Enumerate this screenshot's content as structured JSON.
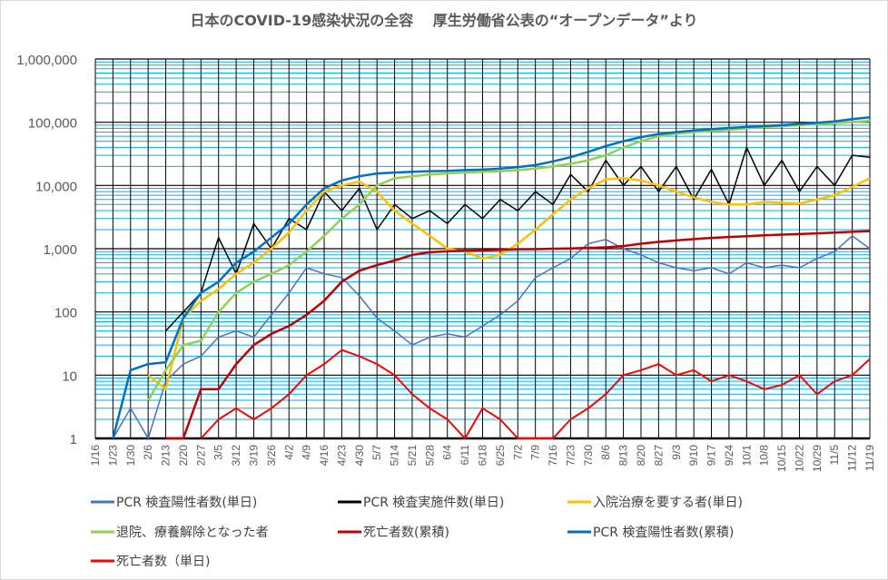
{
  "chart_data": {
    "type": "line",
    "title": "日本のCOVID-19感染状況の全容　 厚生労働省公表の“オープンデータ”より",
    "xlabel": "",
    "ylabel": "",
    "yscale": "log",
    "ylim": [
      1,
      1000000
    ],
    "y_ticks": [
      "1",
      "10",
      "100",
      "1,000",
      "10,000",
      "100,000",
      "1,000,000"
    ],
    "grid": true,
    "legend_position": "bottom",
    "x": [
      "1/16",
      "1/23",
      "1/30",
      "2/6",
      "2/13",
      "2/20",
      "2/27",
      "3/5",
      "3/12",
      "3/19",
      "3/26",
      "4/2",
      "4/9",
      "4/16",
      "4/23",
      "4/30",
      "5/7",
      "5/14",
      "5/21",
      "5/28",
      "6/4",
      "6/11",
      "6/18",
      "6/25",
      "7/2",
      "7/9",
      "7/16",
      "7/23",
      "7/30",
      "8/6",
      "8/13",
      "8/20",
      "8/27",
      "9/3",
      "9/10",
      "9/17",
      "9/24",
      "10/1",
      "10/8",
      "10/15",
      "10/22",
      "10/29",
      "11/5",
      "11/12",
      "11/19"
    ],
    "series": [
      {
        "name": "PCR 検査陽性者数(単日)",
        "color": "#4472C4",
        "width": 1.5,
        "values": [
          null,
          1,
          3,
          1,
          8,
          15,
          20,
          40,
          50,
          40,
          90,
          200,
          500,
          400,
          350,
          180,
          80,
          50,
          30,
          40,
          45,
          40,
          60,
          90,
          150,
          350,
          500,
          700,
          1200,
          1400,
          1000,
          800,
          600,
          500,
          450,
          500,
          400,
          600,
          500,
          550,
          500,
          700,
          900,
          1600,
          1000
        ]
      },
      {
        "name": "PCR 検査実施件数(単日)",
        "color": "#000000",
        "width": 1.5,
        "values": [
          null,
          null,
          null,
          null,
          50,
          100,
          200,
          1500,
          400,
          2500,
          1000,
          3000,
          2000,
          8000,
          4000,
          9000,
          2000,
          5000,
          3000,
          4000,
          2500,
          5000,
          3000,
          6000,
          4000,
          8000,
          5000,
          15000,
          8000,
          25000,
          10000,
          20000,
          8000,
          20000,
          6000,
          18000,
          5000,
          40000,
          10000,
          25000,
          8000,
          20000,
          10000,
          30000,
          28000
        ]
      },
      {
        "name": "入院治療を要する者(単日)",
        "color": "#FFC000",
        "width": 2.5,
        "values": [
          null,
          null,
          null,
          10,
          6,
          80,
          150,
          230,
          400,
          600,
          1000,
          1800,
          4000,
          8000,
          10000,
          11500,
          8000,
          4000,
          2500,
          1600,
          1000,
          900,
          700,
          800,
          1200,
          2000,
          3500,
          6000,
          9000,
          12500,
          13000,
          12000,
          10000,
          8000,
          6500,
          5500,
          5000,
          5000,
          5500,
          5300,
          5200,
          6000,
          7000,
          9500,
          13000
        ]
      },
      {
        "name": "退院、療養解除となった者",
        "color": "#92D050",
        "width": 2.5,
        "values": [
          null,
          null,
          null,
          4,
          12,
          30,
          35,
          100,
          200,
          300,
          400,
          550,
          900,
          1600,
          3000,
          5000,
          10000,
          13000,
          14000,
          15000,
          15500,
          16000,
          16500,
          16800,
          17500,
          18500,
          20000,
          22000,
          25000,
          30000,
          40000,
          50000,
          60000,
          66000,
          70000,
          73000,
          76000,
          80000,
          84000,
          87000,
          90000,
          93000,
          97000,
          101000,
          105000
        ]
      },
      {
        "name": "死亡者数(累積)",
        "color": "#C00000",
        "width": 2.5,
        "values": [
          null,
          null,
          null,
          null,
          1,
          1,
          6,
          6,
          15,
          30,
          45,
          60,
          90,
          150,
          300,
          450,
          550,
          650,
          800,
          880,
          910,
          930,
          940,
          960,
          980,
          985,
          1000,
          1010,
          1030,
          1050,
          1100,
          1200,
          1280,
          1350,
          1420,
          1480,
          1530,
          1580,
          1630,
          1670,
          1700,
          1750,
          1800,
          1850,
          1900
        ]
      },
      {
        "name": "PCR 検査陽性者数(累積)",
        "color": "#0070C0",
        "width": 2.5,
        "values": [
          null,
          1,
          12,
          15,
          16,
          80,
          200,
          300,
          600,
          900,
          1500,
          2500,
          5000,
          9000,
          12000,
          14000,
          15500,
          16000,
          16500,
          16800,
          17000,
          17500,
          17800,
          18500,
          19500,
          21000,
          24000,
          28000,
          34000,
          42000,
          50000,
          58000,
          65000,
          70000,
          74000,
          78000,
          81000,
          84000,
          87000,
          90000,
          94000,
          98000,
          103000,
          112000,
          120000
        ]
      },
      {
        "name": "死亡者数（単日)",
        "color": "#FF0000",
        "width": 2,
        "values": [
          null,
          null,
          null,
          null,
          null,
          null,
          1,
          2,
          3,
          2,
          3,
          5,
          10,
          15,
          25,
          20,
          15,
          10,
          5,
          3,
          2,
          1,
          3,
          2,
          1,
          1,
          1,
          2,
          3,
          5,
          10,
          12,
          15,
          10,
          12,
          8,
          10,
          8,
          6,
          7,
          10,
          5,
          8,
          10,
          18
        ]
      }
    ]
  }
}
